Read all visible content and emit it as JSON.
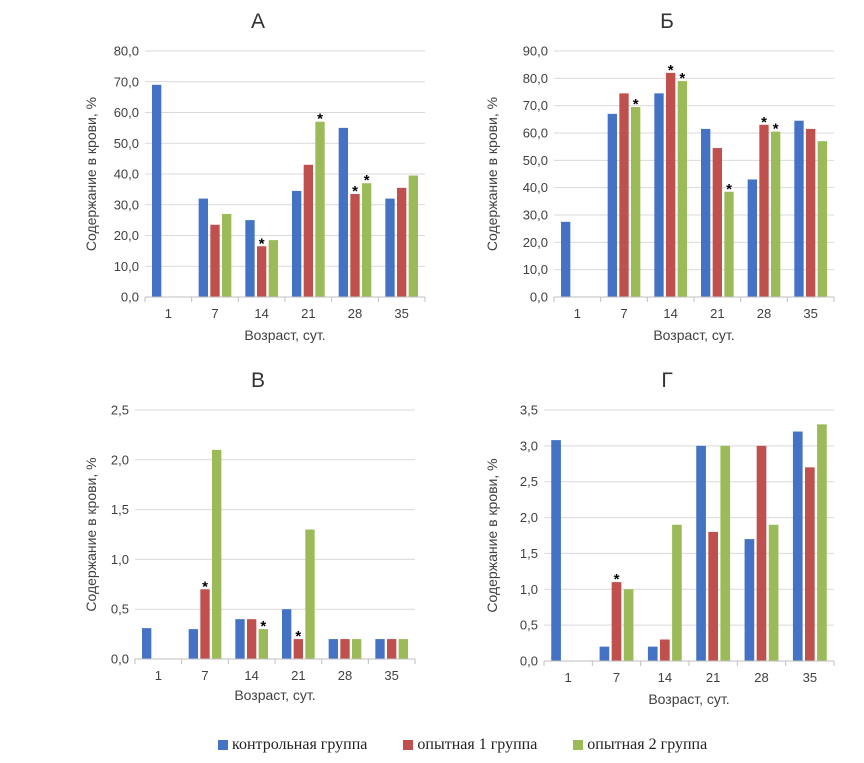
{
  "legend": {
    "items": [
      {
        "label": "контрольная группа",
        "color": "#4472C4"
      },
      {
        "label": "опытная 1 группа",
        "color": "#C0504D"
      },
      {
        "label": "опытная 2 группа",
        "color": "#9BBB59"
      }
    ]
  },
  "chart_data": [
    {
      "type": "bar",
      "title": "А",
      "xlabel": "Возраст, сут.",
      "ylabel": "Содержание в крови, %",
      "categories": [
        "1",
        "7",
        "14",
        "21",
        "28",
        "35"
      ],
      "ylim": [
        0,
        80
      ],
      "ystep": 10,
      "yticks": [
        "0,0",
        "10,0",
        "20,0",
        "30,0",
        "40,0",
        "50,0",
        "60,0",
        "70,0",
        "80,0"
      ],
      "series": [
        {
          "values": [
            69,
            32,
            25,
            34.5,
            55,
            32
          ]
        },
        {
          "values": [
            null,
            23.5,
            16.5,
            43,
            33.5,
            35.5
          ]
        },
        {
          "values": [
            null,
            27,
            18.5,
            57,
            37,
            39.5
          ]
        }
      ],
      "significance": [
        [],
        [],
        [
          2,
          4
        ],
        [
          3,
          4
        ],
        [],
        []
      ]
    },
    {
      "type": "bar",
      "title": "Б",
      "xlabel": "Возраст, сут.",
      "ylabel": "Содержание в крови, %",
      "categories": [
        "1",
        "7",
        "14",
        "21",
        "28",
        "35"
      ],
      "ylim": [
        0,
        90
      ],
      "ystep": 10,
      "yticks": [
        "0,0",
        "10,0",
        "20,0",
        "30,0",
        "40,0",
        "50,0",
        "60,0",
        "70,0",
        "80,0",
        "90,0"
      ],
      "series": [
        {
          "values": [
            27.5,
            67,
            74.5,
            61.5,
            43,
            64.5
          ]
        },
        {
          "values": [
            null,
            74.5,
            82,
            54.5,
            63,
            61.5
          ]
        },
        {
          "values": [
            null,
            69.5,
            79,
            38.5,
            60.5,
            57
          ]
        }
      ],
      "significance": [
        [],
        [],
        [
          1,
          2
        ],
        [],
        [],
        []
      ]
    },
    {
      "type": "bar",
      "title": "В",
      "xlabel": "Возраст, сут.",
      "ylabel": "Содержание в крови, %",
      "categories": [
        "1",
        "7",
        "14",
        "21",
        "28",
        "35"
      ],
      "ylim": [
        0,
        2.5
      ],
      "ystep": 0.5,
      "yticks": [
        "0,0",
        "0,5",
        "1,0",
        "1,5",
        "2,0",
        "2,5"
      ],
      "series": [
        {
          "values": [
            0.31,
            0.3,
            0.4,
            0.5,
            0.2,
            0.2
          ]
        },
        {
          "values": [
            null,
            0.7,
            0.4,
            0.2,
            0.2,
            0.2
          ]
        },
        {
          "values": [
            null,
            2.1,
            0.3,
            1.3,
            0.2,
            0.2
          ]
        }
      ],
      "significance": [
        [],
        [],
        [],
        [],
        [],
        []
      ]
    },
    {
      "type": "bar",
      "title": "Г",
      "xlabel": "Возраст, сут.",
      "ylabel": "Содержание в крови, %",
      "categories": [
        "1",
        "7",
        "14",
        "21",
        "28",
        "35"
      ],
      "ylim": [
        0,
        3.5
      ],
      "ystep": 0.5,
      "yticks": [
        "0,0",
        "0,5",
        "1,0",
        "1,5",
        "2,0",
        "2,5",
        "3,0",
        "3,5"
      ],
      "series": [
        {
          "values": [
            3.08,
            0.2,
            0.2,
            3.0,
            1.7,
            3.2
          ]
        },
        {
          "values": [
            null,
            1.1,
            0.3,
            1.8,
            3.0,
            2.7
          ]
        },
        {
          "values": [
            null,
            1.0,
            1.9,
            3.0,
            1.9,
            3.3
          ]
        }
      ],
      "significance": [
        [],
        [],
        [],
        [],
        [],
        []
      ]
    }
  ],
  "star_marks": [
    [
      {
        "cat": 2,
        "series": 1
      },
      {
        "cat": 3,
        "series": 2
      },
      {
        "cat": 4,
        "series": 1
      },
      {
        "cat": 4,
        "series": 2
      }
    ],
    [
      {
        "cat": 1,
        "series": 2
      },
      {
        "cat": 2,
        "series": 1
      },
      {
        "cat": 2,
        "series": 2
      },
      {
        "cat": 3,
        "series": 2
      },
      {
        "cat": 4,
        "series": 1
      },
      {
        "cat": 4,
        "series": 2
      }
    ],
    [
      {
        "cat": 1,
        "series": 1
      },
      {
        "cat": 2,
        "series": 2
      },
      {
        "cat": 3,
        "series": 1
      }
    ],
    [
      {
        "cat": 1,
        "series": 1
      }
    ]
  ],
  "star_symbol": "*"
}
